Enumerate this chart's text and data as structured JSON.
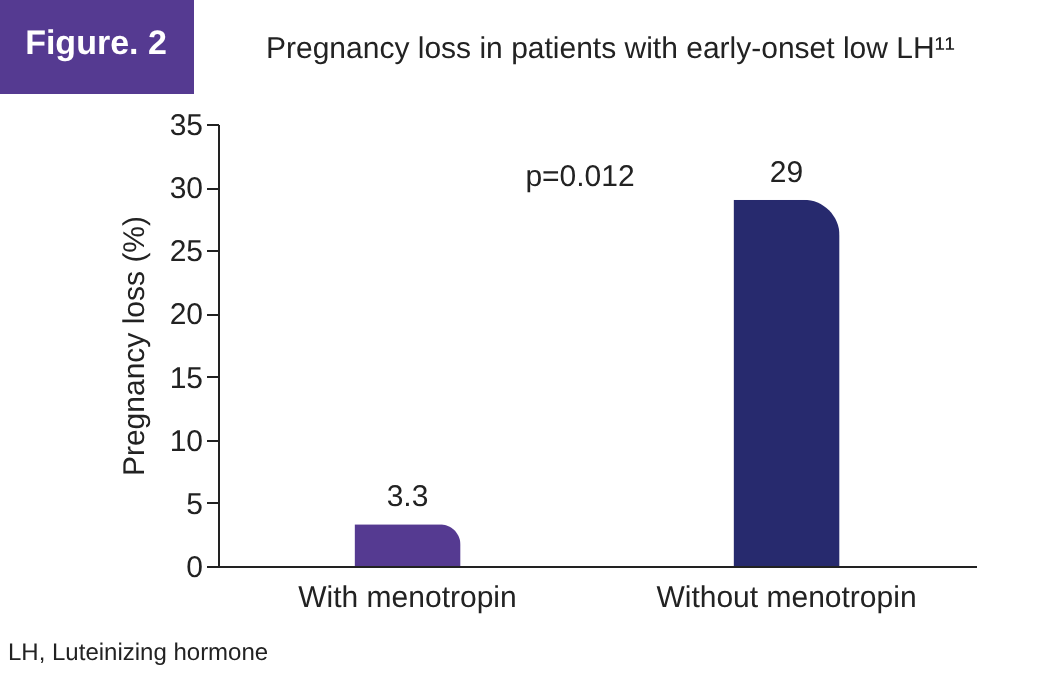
{
  "chart_data": {
    "type": "bar",
    "title": "Pregnancy loss in patients with early-onset low LH¹¹",
    "ylabel": "Pregnancy loss (%)",
    "categories": [
      "With menotropin",
      "Without menotropin"
    ],
    "values": [
      3.3,
      29
    ],
    "colors": [
      "#553a91",
      "#272a6e"
    ],
    "ylim": [
      0,
      35
    ],
    "yticks": [
      0,
      5,
      10,
      15,
      20,
      25,
      30,
      35
    ],
    "data_labels": true,
    "grid": false,
    "annotations": [
      "Figure. 2",
      "p=0.012",
      "LH, Luteinizing hormone"
    ]
  }
}
